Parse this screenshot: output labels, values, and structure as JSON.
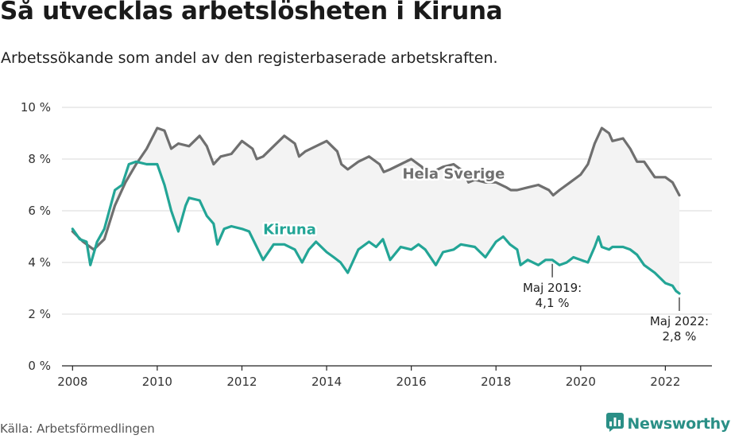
{
  "title": "Så utvecklas arbetslösheten i Kiruna",
  "subtitle": "Arbetssökande som andel av den registerbaserade arbetskraften.",
  "source": "Källa: Arbetsförmedlingen",
  "brand": {
    "name": "Newsworthy",
    "icon": "bar-chart-logo-icon",
    "color": "#2a8f86"
  },
  "colors": {
    "sverige": "#6f6f6f",
    "kiruna": "#23a596",
    "band": "#f3f3f3",
    "grid": "#dadada"
  },
  "chart_data": {
    "type": "line",
    "title": "Så utvecklas arbetslösheten i Kiruna",
    "xlabel": "",
    "ylabel": "",
    "xlim": [
      2007.75,
      2023.1
    ],
    "ylim": [
      0,
      10
    ],
    "grid": true,
    "x_ticks": [
      {
        "value": 2008,
        "label": "2008"
      },
      {
        "value": 2010,
        "label": "2010"
      },
      {
        "value": 2012,
        "label": "2012"
      },
      {
        "value": 2014,
        "label": "2014"
      },
      {
        "value": 2016,
        "label": "2016"
      },
      {
        "value": 2018,
        "label": "2018"
      },
      {
        "value": 2020,
        "label": "2020"
      },
      {
        "value": 2022,
        "label": "2022"
      }
    ],
    "y_ticks": [
      {
        "value": 0,
        "label": "0 %"
      },
      {
        "value": 2,
        "label": "2 %"
      },
      {
        "value": 4,
        "label": "4 %"
      },
      {
        "value": 6,
        "label": "6 %"
      },
      {
        "value": 8,
        "label": "8 %"
      },
      {
        "value": 10,
        "label": "10 %"
      }
    ],
    "series": [
      {
        "name": "Hela Sverige",
        "label": "Hela Sverige",
        "label_at": [
          2017.0,
          7.25
        ],
        "points": [
          [
            2008.0,
            5.2
          ],
          [
            2008.25,
            4.8
          ],
          [
            2008.5,
            4.5
          ],
          [
            2008.75,
            4.9
          ],
          [
            2009.0,
            6.2
          ],
          [
            2009.25,
            7.1
          ],
          [
            2009.5,
            7.8
          ],
          [
            2009.75,
            8.4
          ],
          [
            2010.0,
            9.2
          ],
          [
            2010.17,
            9.1
          ],
          [
            2010.33,
            8.4
          ],
          [
            2010.5,
            8.6
          ],
          [
            2010.75,
            8.5
          ],
          [
            2011.0,
            8.9
          ],
          [
            2011.17,
            8.5
          ],
          [
            2011.33,
            7.8
          ],
          [
            2011.5,
            8.1
          ],
          [
            2011.75,
            8.2
          ],
          [
            2012.0,
            8.7
          ],
          [
            2012.25,
            8.4
          ],
          [
            2012.35,
            8.0
          ],
          [
            2012.5,
            8.1
          ],
          [
            2012.75,
            8.5
          ],
          [
            2013.0,
            8.9
          ],
          [
            2013.25,
            8.6
          ],
          [
            2013.35,
            8.1
          ],
          [
            2013.5,
            8.3
          ],
          [
            2013.75,
            8.5
          ],
          [
            2014.0,
            8.7
          ],
          [
            2014.25,
            8.3
          ],
          [
            2014.35,
            7.8
          ],
          [
            2014.5,
            7.6
          ],
          [
            2014.75,
            7.9
          ],
          [
            2015.0,
            8.1
          ],
          [
            2015.25,
            7.8
          ],
          [
            2015.35,
            7.5
          ],
          [
            2015.5,
            7.6
          ],
          [
            2015.75,
            7.8
          ],
          [
            2016.0,
            8.0
          ],
          [
            2016.25,
            7.7
          ],
          [
            2016.35,
            7.4
          ],
          [
            2016.5,
            7.5
          ],
          [
            2016.75,
            7.7
          ],
          [
            2017.0,
            7.8
          ],
          [
            2017.25,
            7.5
          ],
          [
            2017.35,
            7.1
          ],
          [
            2017.5,
            7.2
          ],
          [
            2017.75,
            7.1
          ],
          [
            2018.0,
            7.1
          ],
          [
            2018.25,
            6.9
          ],
          [
            2018.35,
            6.8
          ],
          [
            2018.5,
            6.8
          ],
          [
            2018.75,
            6.9
          ],
          [
            2019.0,
            7.0
          ],
          [
            2019.25,
            6.8
          ],
          [
            2019.35,
            6.6
          ],
          [
            2019.5,
            6.8
          ],
          [
            2019.75,
            7.1
          ],
          [
            2020.0,
            7.4
          ],
          [
            2020.17,
            7.8
          ],
          [
            2020.33,
            8.6
          ],
          [
            2020.5,
            9.2
          ],
          [
            2020.67,
            9.0
          ],
          [
            2020.75,
            8.7
          ],
          [
            2021.0,
            8.8
          ],
          [
            2021.17,
            8.4
          ],
          [
            2021.33,
            7.9
          ],
          [
            2021.5,
            7.9
          ],
          [
            2021.75,
            7.3
          ],
          [
            2022.0,
            7.3
          ],
          [
            2022.17,
            7.1
          ],
          [
            2022.33,
            6.6
          ]
        ]
      },
      {
        "name": "Kiruna",
        "label": "Kiruna",
        "label_at": [
          2012.5,
          5.1
        ],
        "points": [
          [
            2008.0,
            5.3
          ],
          [
            2008.17,
            4.9
          ],
          [
            2008.33,
            4.8
          ],
          [
            2008.42,
            3.9
          ],
          [
            2008.58,
            4.8
          ],
          [
            2008.75,
            5.3
          ],
          [
            2009.0,
            6.8
          ],
          [
            2009.17,
            7.0
          ],
          [
            2009.33,
            7.8
          ],
          [
            2009.5,
            7.9
          ],
          [
            2009.75,
            7.8
          ],
          [
            2010.0,
            7.8
          ],
          [
            2010.17,
            7.0
          ],
          [
            2010.33,
            6.0
          ],
          [
            2010.5,
            5.2
          ],
          [
            2010.67,
            6.2
          ],
          [
            2010.75,
            6.5
          ],
          [
            2011.0,
            6.4
          ],
          [
            2011.17,
            5.8
          ],
          [
            2011.33,
            5.5
          ],
          [
            2011.42,
            4.7
          ],
          [
            2011.58,
            5.3
          ],
          [
            2011.75,
            5.4
          ],
          [
            2012.0,
            5.3
          ],
          [
            2012.17,
            5.2
          ],
          [
            2012.5,
            4.1
          ],
          [
            2012.75,
            4.7
          ],
          [
            2013.0,
            4.7
          ],
          [
            2013.25,
            4.5
          ],
          [
            2013.42,
            4.0
          ],
          [
            2013.58,
            4.5
          ],
          [
            2013.75,
            4.8
          ],
          [
            2014.0,
            4.4
          ],
          [
            2014.17,
            4.2
          ],
          [
            2014.33,
            4.0
          ],
          [
            2014.5,
            3.6
          ],
          [
            2014.75,
            4.5
          ],
          [
            2015.0,
            4.8
          ],
          [
            2015.17,
            4.6
          ],
          [
            2015.33,
            4.9
          ],
          [
            2015.5,
            4.1
          ],
          [
            2015.75,
            4.6
          ],
          [
            2016.0,
            4.5
          ],
          [
            2016.17,
            4.7
          ],
          [
            2016.33,
            4.5
          ],
          [
            2016.58,
            3.9
          ],
          [
            2016.75,
            4.4
          ],
          [
            2017.0,
            4.5
          ],
          [
            2017.17,
            4.7
          ],
          [
            2017.5,
            4.6
          ],
          [
            2017.75,
            4.2
          ],
          [
            2018.0,
            4.8
          ],
          [
            2018.17,
            5.0
          ],
          [
            2018.33,
            4.7
          ],
          [
            2018.5,
            4.5
          ],
          [
            2018.58,
            3.9
          ],
          [
            2018.75,
            4.1
          ],
          [
            2019.0,
            3.9
          ],
          [
            2019.17,
            4.1
          ],
          [
            2019.33,
            4.1
          ],
          [
            2019.5,
            3.9
          ],
          [
            2019.67,
            4.0
          ],
          [
            2019.83,
            4.2
          ],
          [
            2020.0,
            4.1
          ],
          [
            2020.17,
            4.0
          ],
          [
            2020.33,
            4.6
          ],
          [
            2020.42,
            5.0
          ],
          [
            2020.5,
            4.6
          ],
          [
            2020.67,
            4.5
          ],
          [
            2020.75,
            4.6
          ],
          [
            2021.0,
            4.6
          ],
          [
            2021.17,
            4.5
          ],
          [
            2021.33,
            4.3
          ],
          [
            2021.5,
            3.9
          ],
          [
            2021.75,
            3.6
          ],
          [
            2022.0,
            3.2
          ],
          [
            2022.17,
            3.1
          ],
          [
            2022.25,
            2.9
          ],
          [
            2022.33,
            2.8
          ]
        ]
      }
    ],
    "annotations": [
      {
        "line1": "Maj 2019:",
        "line2": "4,1 %",
        "x": 2019.33,
        "y": 4.1,
        "series": "Kiruna"
      },
      {
        "line1": "Maj 2022:",
        "line2": "2,8 %",
        "x": 2022.33,
        "y": 2.8,
        "series": "Kiruna"
      }
    ]
  }
}
